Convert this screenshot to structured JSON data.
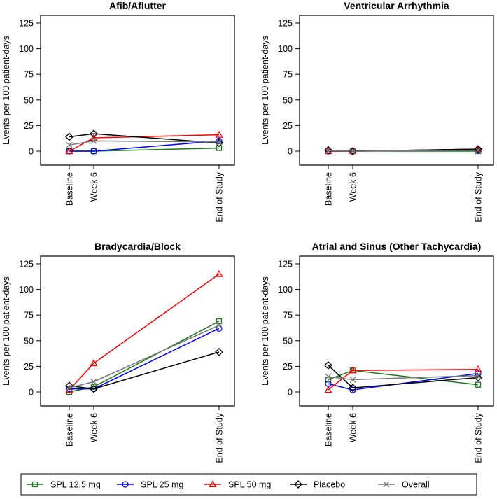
{
  "chart_data": [
    {
      "type": "line",
      "title": "Afib/Aflutter",
      "ylabel": "Events per 100 patient-days",
      "categories": [
        "Baseline",
        "Week 6",
        "End of Study"
      ],
      "ylim": [
        0,
        125
      ],
      "yticks": [
        0,
        25,
        50,
        75,
        100,
        125
      ],
      "series": [
        {
          "name": "SPL 12.5 mg",
          "values": [
            0,
            0,
            3
          ]
        },
        {
          "name": "SPL 25 mg",
          "values": [
            0,
            0,
            10
          ]
        },
        {
          "name": "SPL 50 mg",
          "values": [
            0,
            13,
            16
          ]
        },
        {
          "name": "Placebo",
          "values": [
            14,
            17,
            8
          ]
        },
        {
          "name": "Overall",
          "values": [
            6,
            10,
            9
          ]
        }
      ]
    },
    {
      "type": "line",
      "title": "Ventricular Arrhythmia",
      "ylabel": "Events per 100 patient-days",
      "categories": [
        "Baseline",
        "Week 6",
        "End of Study"
      ],
      "ylim": [
        0,
        125
      ],
      "yticks": [
        0,
        25,
        50,
        75,
        100,
        125
      ],
      "series": [
        {
          "name": "SPL 12.5 mg",
          "values": [
            0,
            0,
            0
          ]
        },
        {
          "name": "SPL 25 mg",
          "values": [
            0,
            0,
            1
          ]
        },
        {
          "name": "SPL 50 mg",
          "values": [
            0,
            0,
            2
          ]
        },
        {
          "name": "Placebo",
          "values": [
            1,
            0,
            2
          ]
        },
        {
          "name": "Overall",
          "values": [
            0.5,
            0,
            1
          ]
        }
      ]
    },
    {
      "type": "line",
      "title": "Bradycardia/Block",
      "ylabel": "Events per 100 patient-days",
      "categories": [
        "Baseline",
        "Week 6",
        "End of Study"
      ],
      "ylim": [
        0,
        125
      ],
      "yticks": [
        0,
        25,
        50,
        75,
        100,
        125
      ],
      "series": [
        {
          "name": "SPL 12.5 mg",
          "values": [
            0,
            5,
            69
          ]
        },
        {
          "name": "SPL 25 mg",
          "values": [
            3,
            3,
            62
          ]
        },
        {
          "name": "SPL 50 mg",
          "values": [
            2,
            28,
            115
          ]
        },
        {
          "name": "Placebo",
          "values": [
            6,
            3,
            39
          ]
        },
        {
          "name": "Overall",
          "values": [
            4,
            10,
            65
          ]
        }
      ]
    },
    {
      "type": "line",
      "title": "Atrial and Sinus (Other Tachycardia)",
      "ylabel": "Events per 100 patient-days",
      "categories": [
        "Baseline",
        "Week 6",
        "End of Study"
      ],
      "ylim": [
        0,
        125
      ],
      "yticks": [
        0,
        25,
        50,
        75,
        100,
        125
      ],
      "series": [
        {
          "name": "SPL 12.5 mg",
          "values": [
            12,
            21,
            7
          ]
        },
        {
          "name": "SPL 25 mg",
          "values": [
            8,
            2,
            18
          ]
        },
        {
          "name": "SPL 50 mg",
          "values": [
            2,
            21,
            22
          ]
        },
        {
          "name": "Placebo",
          "values": [
            26,
            4,
            14
          ]
        },
        {
          "name": "Overall",
          "values": [
            15,
            12,
            16
          ]
        }
      ]
    }
  ],
  "legend": [
    {
      "name": "SPL 12.5 mg",
      "color": "#1a7a1a",
      "marker": "square"
    },
    {
      "name": "SPL 25 mg",
      "color": "#0000ff",
      "marker": "circle"
    },
    {
      "name": "SPL 50 mg",
      "color": "#ff0000",
      "marker": "triangle"
    },
    {
      "name": "Placebo",
      "color": "#000000",
      "marker": "diamond"
    },
    {
      "name": "Overall",
      "color": "#777777",
      "marker": "x"
    }
  ]
}
